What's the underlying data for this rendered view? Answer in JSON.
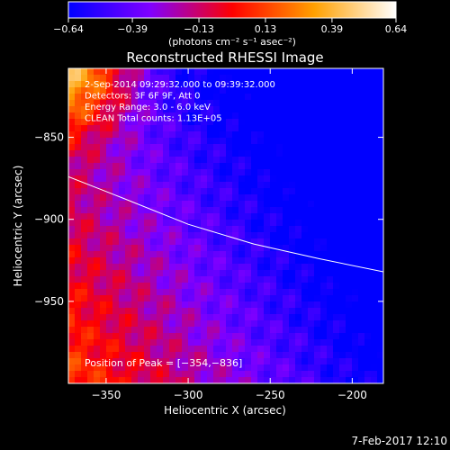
{
  "chart_data": {
    "type": "heatmap",
    "title": "Reconstructed RHESSI Image",
    "xlabel": "Heliocentric X (arcsec)",
    "ylabel": "Heliocentric Y (arcsec)",
    "xlim": [
      -373,
      -181
    ],
    "ylim": [
      -1000,
      -808
    ],
    "x_ticks": [
      -350,
      -300,
      -250,
      -200
    ],
    "x_tick_labels": [
      "−350",
      "−300",
      "−250",
      "−200"
    ],
    "y_ticks": [
      -850,
      -900,
      -950
    ],
    "y_tick_labels": [
      "−850",
      "−900",
      "−950"
    ],
    "colorbar": {
      "range": [
        -0.64,
        0.64
      ],
      "ticks": [
        -0.64,
        -0.39,
        -0.13,
        0.13,
        0.39,
        0.64
      ],
      "tick_labels": [
        "−0.64",
        "−0.39",
        "−0.13",
        "0.13",
        "0.39",
        "0.64"
      ],
      "label": "(photons cm⁻² s⁻¹ asec⁻²)",
      "colors": [
        "#0000ff",
        "#8000ff",
        "#ff0000",
        "#ffa000",
        "#ffffff"
      ]
    },
    "annotations": [
      "2-Sep-2014 09:29:32.000 to 09:39:32.000",
      "Detectors: 3F 6F 9F, Att 0",
      "Energy Range: 3.0 - 6.0 keV",
      "CLEAN    Total counts: 1.13E+05"
    ],
    "peak_label": "Position of Peak = [−354,−836]",
    "peak": [
      -354,
      -836
    ],
    "limb_curve": {
      "x": [
        -373,
        -340,
        -300,
        -260,
        -220,
        -181
      ],
      "y": [
        -874,
        -887,
        -903,
        -915,
        -924,
        -932
      ]
    }
  },
  "timestamp": "7-Feb-2017 12:10",
  "colors": {
    "background": "#000000",
    "foreground": "#ffffff"
  }
}
